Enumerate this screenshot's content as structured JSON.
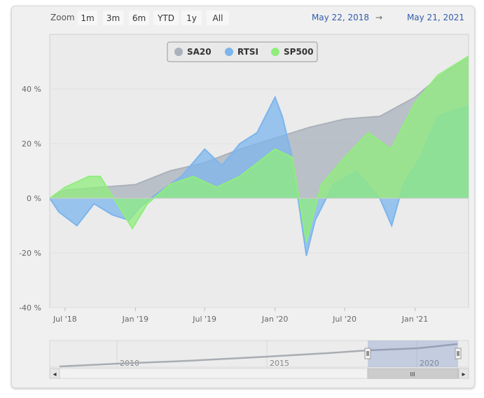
{
  "range_selector": {
    "zoom_label": "Zoom",
    "buttons": [
      "1m",
      "3m",
      "6m",
      "YTD",
      "1y",
      "All"
    ],
    "from_date": "May 22, 2018",
    "arrow": "→",
    "to_date": "May 21, 2021"
  },
  "chart_data": {
    "type": "area",
    "y_ticks": [
      "40 %",
      "20 %",
      "0 %",
      "-20 %",
      "-40 %"
    ],
    "x_ticks": [
      "Jul '18",
      "Jan '19",
      "Jul '19",
      "Jan '20",
      "Jul '20",
      "Jan '21"
    ],
    "ylim": [
      -40,
      60
    ],
    "legend_placement": "top-center",
    "grid": true,
    "series": [
      {
        "name": "SA20",
        "color": "#aab1bb",
        "x": [
          "2018-05-22",
          "2018-07-01",
          "2018-10-01",
          "2019-01-01",
          "2019-04-01",
          "2019-07-01",
          "2019-10-01",
          "2020-01-01",
          "2020-04-01",
          "2020-07-01",
          "2020-10-01",
          "2021-01-01",
          "2021-03-01",
          "2021-05-21"
        ],
        "values": [
          0,
          3,
          4,
          5,
          10,
          13,
          18,
          22,
          26,
          29,
          30,
          37,
          44,
          52
        ]
      },
      {
        "name": "RTSI",
        "color": "#7cb5ec",
        "x": [
          "2018-05-22",
          "2018-06-15",
          "2018-08-01",
          "2018-09-15",
          "2018-11-01",
          "2018-12-15",
          "2019-01-15",
          "2019-03-01",
          "2019-05-01",
          "2019-07-01",
          "2019-08-15",
          "2019-10-01",
          "2019-11-15",
          "2020-01-01",
          "2020-01-20",
          "2020-02-15",
          "2020-03-01",
          "2020-03-23",
          "2020-04-15",
          "2020-06-01",
          "2020-08-01",
          "2020-10-01",
          "2020-11-01",
          "2020-12-01",
          "2021-01-15",
          "2021-03-01",
          "2021-05-21"
        ],
        "values": [
          0,
          -5,
          -10,
          -2,
          -6,
          -8,
          -3,
          2,
          8,
          18,
          12,
          20,
          24,
          37,
          30,
          15,
          0,
          -21,
          -8,
          5,
          10,
          0,
          -10,
          5,
          15,
          30,
          34
        ]
      },
      {
        "name": "SP500",
        "color": "#90ed7d",
        "x": [
          "2018-05-22",
          "2018-07-01",
          "2018-09-01",
          "2018-10-01",
          "2018-12-24",
          "2019-02-01",
          "2019-04-01",
          "2019-06-01",
          "2019-08-01",
          "2019-10-01",
          "2020-01-01",
          "2020-02-15",
          "2020-03-23",
          "2020-05-01",
          "2020-07-01",
          "2020-09-01",
          "2020-10-30",
          "2021-01-01",
          "2021-03-01",
          "2021-05-21"
        ],
        "values": [
          0,
          4,
          8,
          8,
          -11,
          -2,
          5,
          8,
          4,
          8,
          18,
          15,
          -16,
          5,
          15,
          24,
          18,
          35,
          45,
          52
        ]
      }
    ]
  },
  "navigator": {
    "labels": [
      "2010",
      "2015",
      "2020"
    ],
    "scroll_left": "◂",
    "scroll_right": "▸",
    "grip": "III"
  }
}
